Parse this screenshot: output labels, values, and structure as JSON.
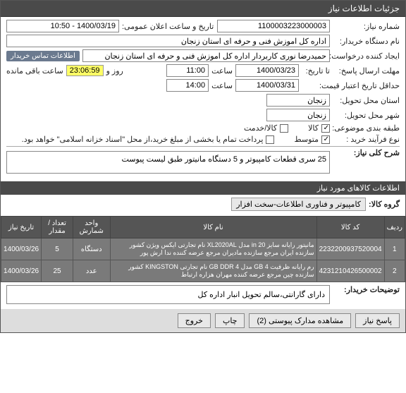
{
  "header": {
    "title": "جزئیات اطلاعات نیاز"
  },
  "form": {
    "needNumber": {
      "label": "شماره نیاز:",
      "value": "1100003223000003"
    },
    "announceDate": {
      "label": "تاریخ و ساعت اعلان عمومی:",
      "value": "1400/03/19 - 10:50"
    },
    "buyerOrg": {
      "label": "نام دستگاه خریدار:",
      "value": "اداره کل اموزش فنی و حرفه ای استان زنجان"
    },
    "creator": {
      "label": "ایجاد کننده درخواست:",
      "value": "حمیدرضا نوری کاربردار اداره کل اموزش فنی و حرفه ای استان زنجان"
    },
    "contactBadge": "اطلاعات تماس خریدار",
    "deadlineRow": {
      "label": "مهلت ارسال پاسخ:",
      "toLabel": "تا تاریخ:",
      "date": "1400/03/23",
      "hourLabel": "ساعت",
      "hour": "11:00",
      "dayLabel": "روز و",
      "remainLabel": "ساعت باقی مانده",
      "remain": "23:06:59"
    },
    "validityRow": {
      "label": "حداقل تاریخ اعتبار قیمت:",
      "date": "1400/03/31",
      "hourLabel": "ساعت",
      "hour": "14:00"
    },
    "deliveryProvince": {
      "label": "استان محل تحویل:",
      "value": "زنجان"
    },
    "deliveryCity": {
      "label": "شهر محل تحویل:",
      "value": "زنجان"
    },
    "budgetRow": {
      "label": "طبقه بندی موضوعی:",
      "goods": "کالا",
      "service": "کالا/خدمت"
    },
    "processRow": {
      "label": "نوع فرآیند خرید :",
      "opt1": "متوسط",
      "note": "پرداخت تمام یا بخشی از مبلغ خرید،از محل \"اسناد خزانه اسلامی\" خواهد بود."
    },
    "summary": {
      "label": "شرح کلی نیاز:",
      "value": "25 سری قطعات کامپیوتر و 5 دستگاه مانیتور طبق لیست پیوست"
    }
  },
  "itemsSection": {
    "title": "اطلاعات کالاهای مورد نیاز",
    "groupLabel": "گروه کالا:",
    "groupValue": "کامپیوتر و فناوری اطلاعات-سخت افزار"
  },
  "table": {
    "headers": [
      "ردیف",
      "کد کالا",
      "نام کالا",
      "واحد شمارش",
      "تعداد / مقدار",
      "تاریخ نیاز"
    ],
    "rows": [
      {
        "idx": "1",
        "code": "2232200937520004",
        "name": "مانیتور رایانه سایز 20 in مدل XL2020AL نام تجارتی ایکس ویژن کشور سازنده ایران مرجع سازنده مادیران مرجع عرضه کننده ندا ارش پور",
        "unit": "دستگاه",
        "qty": "5",
        "date": "1400/03/26"
      },
      {
        "idx": "2",
        "code": "4231210426500002",
        "name": "رم رایانه ظرفیت GB 4 مدل GB DDR 4 نام تجارتی KINGSTON کشور سازنده چین مرجع عرضه کننده مهران هزاره ارتباط",
        "unit": "عدد",
        "qty": "25",
        "date": "1400/03/26"
      }
    ]
  },
  "buyerNotes": {
    "label": "توضیحات خریدار:",
    "value": "دارای گارانتی،سالم تحویل انبار اداره کل"
  },
  "footer": {
    "btnReply": "پاسخ نیاز",
    "btnAttach": "مشاهده مدارک پیوستی (2)",
    "btnPrint": "چاپ",
    "btnExit": "خروج"
  }
}
